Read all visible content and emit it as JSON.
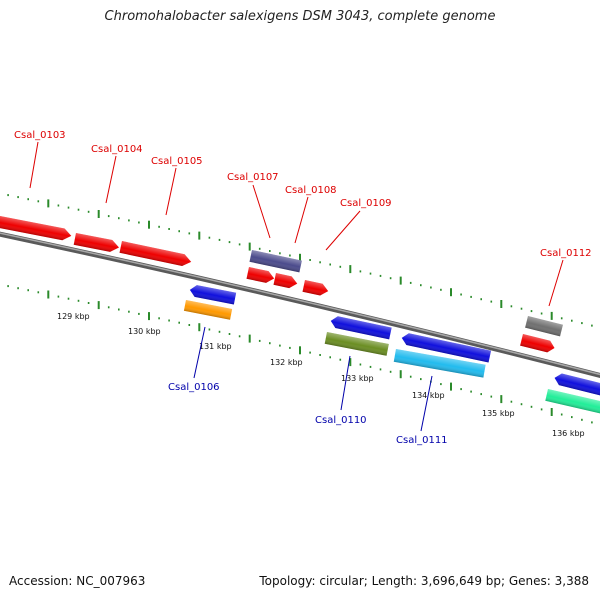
{
  "title": "Chromohalobacter salexigens DSM 3043, complete genome",
  "accession": "Accession: NC_007963",
  "summary": "Topology: circular; Length: 3,696,649 bp; Genes: 3,388",
  "kbp_labels": [
    "129 kbp",
    "130 kbp",
    "131 kbp",
    "132 kbp",
    "133 kbp",
    "134 kbp",
    "135 kbp",
    "136 kbp"
  ],
  "genes": [
    {
      "name": "Csal_0103",
      "strand": "forward",
      "color": "#dd0000"
    },
    {
      "name": "Csal_0104",
      "strand": "forward",
      "color": "#dd0000"
    },
    {
      "name": "Csal_0105",
      "strand": "forward",
      "color": "#dd0000"
    },
    {
      "name": "Csal_0106",
      "strand": "reverse",
      "color": "#0000aa"
    },
    {
      "name": "Csal_0107",
      "strand": "forward",
      "color": "#dd0000"
    },
    {
      "name": "Csal_0108",
      "strand": "forward",
      "color": "#dd0000"
    },
    {
      "name": "Csal_0109",
      "strand": "forward",
      "color": "#dd0000"
    },
    {
      "name": "Csal_0110",
      "strand": "reverse",
      "color": "#0000aa"
    },
    {
      "name": "Csal_0111",
      "strand": "reverse",
      "color": "#0000aa"
    },
    {
      "name": "Csal_0112",
      "strand": "forward",
      "color": "#dd0000"
    }
  ],
  "colors": {
    "forward_label": "#dd0000",
    "reverse_label": "#0000aa",
    "backbone": "#808080",
    "ruler": "#2a8a2a",
    "red_gene": "#ee0000",
    "blue_gene": "#1010dd",
    "orange_gene": "#ff9900",
    "olive_gene": "#6b8e23",
    "cyan_gene": "#22bbee",
    "slate_gene": "#4b4b8c",
    "gray_gene": "#707070",
    "teal_gene": "#22ee99"
  }
}
